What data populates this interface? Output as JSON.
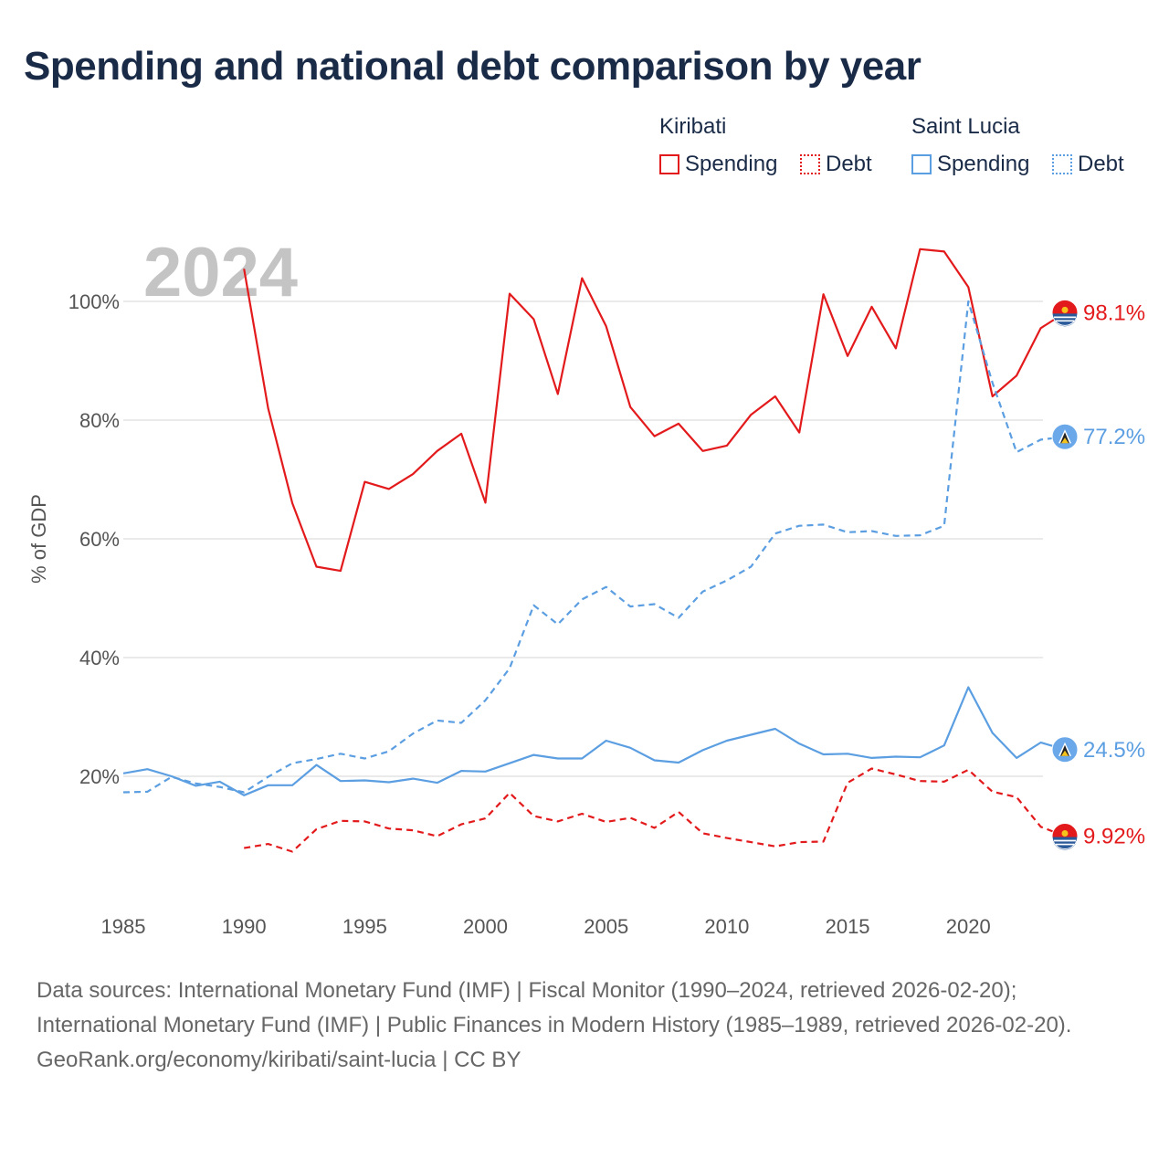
{
  "title": "Spending and national debt comparison by year",
  "legend": {
    "groups": [
      {
        "name": "Kiribati",
        "color": "#e31a1c",
        "items": [
          "Spending",
          "Debt"
        ]
      },
      {
        "name": "Saint Lucia",
        "color": "#5b9ee1",
        "items": [
          "Spending",
          "Debt"
        ]
      }
    ]
  },
  "footer": {
    "sources": "Data sources: International Monetary Fund (IMF) | Fiscal Monitor (1990–2024, retrieved 2026-02-20); International Monetary Fund (IMF) | Public Finances in Modern History (1985–1989, retrieved 2026-02-20).",
    "credit": "GeoRank.org/economy/kiribati/saint-lucia | CC BY"
  },
  "chart_data": {
    "type": "line",
    "current_year": "2024",
    "ylabel": "% of GDP",
    "xlim": [
      1985,
      2024
    ],
    "ylim": [
      0,
      115
    ],
    "x_ticks": [
      1985,
      1990,
      1995,
      2000,
      2005,
      2010,
      2015,
      2020
    ],
    "y_ticks": [
      20,
      40,
      60,
      80,
      100
    ],
    "y_tick_labels": [
      "20%",
      "40%",
      "60%",
      "80%",
      "100%"
    ],
    "series": [
      {
        "name": "Kiribati Spending",
        "country": "Kiribati",
        "measure": "Spending",
        "color": "#e31a1c",
        "dashed": false,
        "end_label": "98.1%",
        "x": [
          1990,
          1991,
          1992,
          1993,
          1994,
          1995,
          1996,
          1997,
          1998,
          1999,
          2000,
          2001,
          2002,
          2003,
          2004,
          2005,
          2006,
          2007,
          2008,
          2009,
          2010,
          2011,
          2012,
          2013,
          2014,
          2015,
          2016,
          2017,
          2018,
          2019,
          2020,
          2021,
          2022,
          2023,
          2024
        ],
        "values": [
          105.5,
          82,
          66,
          55.3,
          54.6,
          69.6,
          68.4,
          70.9,
          74.8,
          77.7,
          66.1,
          101.3,
          97,
          84.4,
          103.9,
          95.8,
          82.2,
          77.3,
          79.4,
          74.8,
          75.7,
          80.9,
          84,
          77.9,
          101.2,
          90.8,
          99.1,
          92.1,
          108.8,
          108.4,
          102.4,
          84,
          87.5,
          95.5,
          98.1
        ]
      },
      {
        "name": "Kiribati Debt",
        "country": "Kiribati",
        "measure": "Debt",
        "color": "#e31a1c",
        "dashed": true,
        "end_label": "9.92%",
        "x": [
          1990,
          1991,
          1992,
          1993,
          1994,
          1995,
          1996,
          1997,
          1998,
          1999,
          2000,
          2001,
          2002,
          2003,
          2004,
          2005,
          2006,
          2007,
          2008,
          2009,
          2010,
          2011,
          2012,
          2013,
          2014,
          2015,
          2016,
          2017,
          2018,
          2019,
          2020,
          2021,
          2022,
          2023,
          2024
        ],
        "values": [
          7.9,
          8.6,
          7.3,
          11.1,
          12.5,
          12.4,
          11.2,
          10.9,
          9.9,
          11.9,
          12.9,
          17.2,
          13.3,
          12.4,
          13.7,
          12.3,
          13,
          11.3,
          14,
          10.4,
          9.6,
          8.9,
          8.2,
          8.9,
          9,
          18.9,
          21.3,
          20.3,
          19.2,
          19.1,
          21.1,
          17.4,
          16.5,
          11.5,
          9.92
        ]
      },
      {
        "name": "Saint Lucia Spending",
        "country": "Saint Lucia",
        "measure": "Spending",
        "color": "#5b9ee1",
        "dashed": false,
        "end_label": "24.5%",
        "x": [
          1985,
          1986,
          1987,
          1988,
          1989,
          1990,
          1991,
          1992,
          1993,
          1994,
          1995,
          1996,
          1997,
          1998,
          1999,
          2000,
          2001,
          2002,
          2003,
          2004,
          2005,
          2006,
          2007,
          2008,
          2009,
          2010,
          2011,
          2012,
          2013,
          2014,
          2015,
          2016,
          2017,
          2018,
          2019,
          2020,
          2021,
          2022,
          2023,
          2024
        ],
        "values": [
          20.5,
          21.2,
          20,
          18.4,
          19.1,
          16.8,
          18.5,
          18.5,
          21.9,
          19.2,
          19.3,
          19,
          19.6,
          18.9,
          20.9,
          20.8,
          22.2,
          23.6,
          23,
          23,
          26,
          24.8,
          22.7,
          22.3,
          24.4,
          26,
          27,
          28,
          25.5,
          23.7,
          23.8,
          23.1,
          23.3,
          23.2,
          25.2,
          35,
          27.3,
          23.1,
          25.7,
          24.5
        ]
      },
      {
        "name": "Saint Lucia Debt",
        "country": "Saint Lucia",
        "measure": "Debt",
        "color": "#5b9ee1",
        "dashed": true,
        "end_label": "77.2%",
        "x": [
          1985,
          1986,
          1987,
          1988,
          1989,
          1990,
          1991,
          1992,
          1993,
          1994,
          1995,
          1996,
          1997,
          1998,
          1999,
          2000,
          2001,
          2002,
          2003,
          2004,
          2005,
          2006,
          2007,
          2008,
          2009,
          2010,
          2011,
          2012,
          2013,
          2014,
          2015,
          2016,
          2017,
          2018,
          2019,
          2020,
          2021,
          2022,
          2023,
          2024
        ],
        "values": [
          17.3,
          17.4,
          19.9,
          18.8,
          18.2,
          17.3,
          19.9,
          22.2,
          22.9,
          23.8,
          23,
          24.2,
          27.2,
          29.4,
          29,
          32.8,
          38.2,
          48.8,
          45.6,
          49.8,
          51.9,
          48.6,
          49,
          46.7,
          51.1,
          53,
          55.3,
          60.9,
          62.2,
          62.4,
          61.1,
          61.3,
          60.5,
          60.6,
          62.2,
          100,
          86.3,
          74.6,
          76.7,
          77.2
        ]
      }
    ]
  }
}
